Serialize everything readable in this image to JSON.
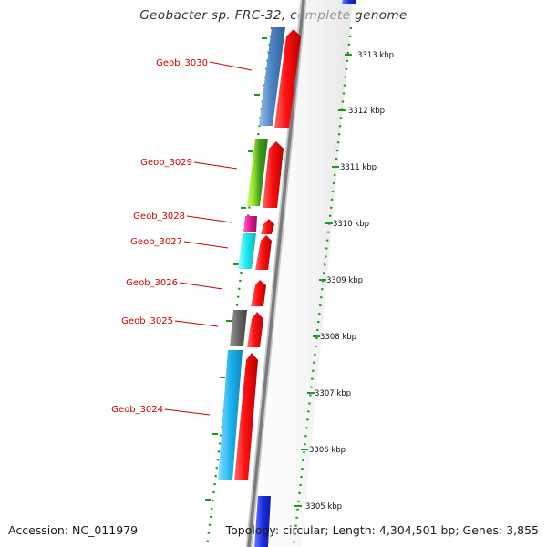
{
  "title": "Geobacter sp. FRC-32, complete genome",
  "accession": "Accession: NC_011979",
  "topology": "Topology: circular; Length: 4,304,501 bp; Genes: 3,855",
  "kbp_ticks": [
    "3313 kbp",
    "3312 kbp",
    "3311 kbp",
    "3310 kbp",
    "3309 kbp",
    "3308 kbp",
    "3307 kbp",
    "3306 kbp",
    "3305 kbp"
  ],
  "genes": [
    {
      "label": "Geob_3030",
      "color": "#4f86c6",
      "strand": "minus"
    },
    {
      "label": "Geob_3029",
      "color": "#8fdc2a",
      "strand": "minus"
    },
    {
      "label": "Geob_3028",
      "color": "#e0178f",
      "strand": "minus"
    },
    {
      "label": "Geob_3027",
      "color": "#19e8ec",
      "strand": "minus"
    },
    {
      "label": "Geob_3026",
      "color": "#e81414",
      "strand": "plus"
    },
    {
      "label": "Geob_3025",
      "color": "#666666",
      "strand": "minus"
    },
    {
      "label": "Geob_3024",
      "color": "#1eb4ee",
      "strand": "minus"
    }
  ],
  "colors": {
    "plus_strand": "#e81414",
    "backbone": "#8a8a8a",
    "label": "#cc0000",
    "tick_dots": "#1a9a1a",
    "neighbor_gene": "#1a2fe0"
  }
}
